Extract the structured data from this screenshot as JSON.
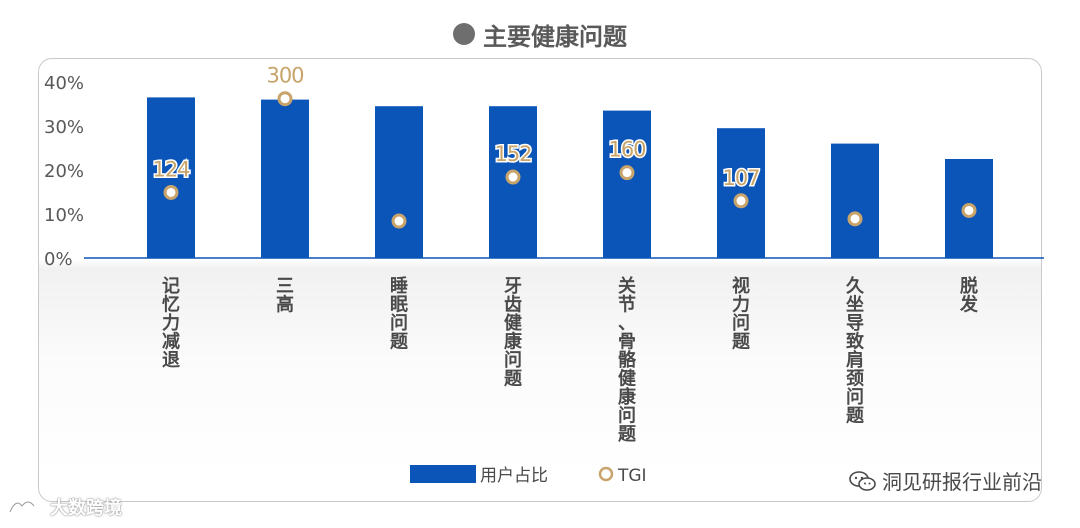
{
  "title": "主要健康问题",
  "chart_data": {
    "type": "bar",
    "categories": [
      "记忆力减退",
      "三高",
      "睡眠问题",
      "牙齿健康问题",
      "关节、骨骼健康问题",
      "视力问题",
      "久坐导致肩颈问题",
      "脱发"
    ],
    "y_ticks": [
      "40%",
      "30%",
      "20%",
      "10%",
      "0%"
    ],
    "ylim": [
      0,
      40
    ],
    "series": [
      {
        "name": "用户占比",
        "values": [
          36.5,
          36,
          34.5,
          34.5,
          33.5,
          29.5,
          26,
          22.5
        ],
        "color": "#0b55b8"
      },
      {
        "name": "TGI",
        "values": [
          124,
          300,
          null,
          152,
          160,
          107,
          null,
          null
        ],
        "marker_level": [
          14.9,
          36.2,
          8.4,
          18.4,
          19.4,
          13,
          8.9,
          10.8
        ],
        "color": "#c8a46a"
      }
    ],
    "legend_position": "bottom"
  },
  "watermark_left": "大数跨境",
  "watermark_right": "洞见研报行业前沿"
}
